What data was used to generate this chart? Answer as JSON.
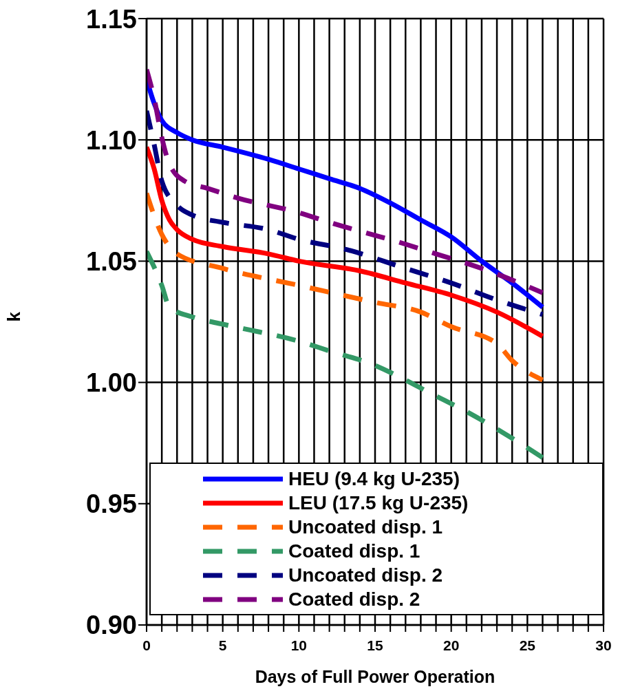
{
  "chart_data": {
    "type": "line",
    "xlabel": "Days of Full Power Operation",
    "ylabel": "k",
    "xlim": [
      0,
      30
    ],
    "xticks": [
      0,
      {
        "value": 1,
        "label": null
      },
      {
        "value": 2,
        "label": null
      },
      {
        "value": 3,
        "label": null
      },
      {
        "value": 4,
        "label": null
      },
      5,
      {
        "value": 6,
        "label": null
      },
      {
        "value": 7,
        "label": null
      },
      {
        "value": 8,
        "label": null
      },
      {
        "value": 9,
        "label": null
      },
      10,
      {
        "value": 11,
        "label": null
      },
      {
        "value": 12,
        "label": null
      },
      {
        "value": 13,
        "label": null
      },
      {
        "value": 14,
        "label": null
      },
      15,
      {
        "value": 16,
        "label": null
      },
      {
        "value": 17,
        "label": null
      },
      {
        "value": 18,
        "label": null
      },
      {
        "value": 19,
        "label": null
      },
      20,
      {
        "value": 21,
        "label": null
      },
      {
        "value": 22,
        "label": null
      },
      {
        "value": 23,
        "label": null
      },
      {
        "value": 24,
        "label": null
      },
      25,
      {
        "value": 26,
        "label": null
      },
      {
        "value": 27,
        "label": null
      },
      {
        "value": 28,
        "label": null
      },
      {
        "value": 29,
        "label": null
      },
      30
    ],
    "ylim": [
      0.9,
      1.15
    ],
    "yticks": [
      {
        "value": 0.9,
        "label": "0.90"
      },
      {
        "value": 0.95,
        "label": "0.95"
      },
      {
        "value": 1.0,
        "label": "1.00"
      },
      {
        "value": 1.05,
        "label": "1.05"
      },
      {
        "value": 1.1,
        "label": "1.10"
      },
      {
        "value": 1.15,
        "label": "1.15"
      }
    ],
    "grid": true,
    "legend": "bottom",
    "marker": "none",
    "series": [
      {
        "name": "HEU (9.4 kg U-235)",
        "color": "#0000ff",
        "line_style": "solid",
        "x": [
          0,
          0.5,
          1,
          2,
          3,
          5,
          8,
          10,
          12,
          14,
          16,
          18,
          20,
          22,
          24,
          26
        ],
        "values": [
          1.125,
          1.115,
          1.108,
          1.103,
          1.1,
          1.097,
          1.092,
          1.088,
          1.084,
          1.08,
          1.074,
          1.067,
          1.06,
          1.05,
          1.041,
          1.031
        ]
      },
      {
        "name": "LEU (17.5 kg U-235)",
        "color": "#ff0000",
        "line_style": "solid",
        "x": [
          0,
          0.5,
          1,
          1.5,
          2,
          3,
          5,
          8,
          10,
          14,
          17,
          20,
          23,
          26
        ],
        "values": [
          1.097,
          1.088,
          1.075,
          1.067,
          1.063,
          1.059,
          1.056,
          1.053,
          1.05,
          1.046,
          1.041,
          1.036,
          1.029,
          1.019
        ]
      },
      {
        "name": "Uncoated disp. 1",
        "color": "#ff6600",
        "line_style": "dashed",
        "x": [
          0,
          1,
          2,
          5,
          10,
          15,
          18,
          20,
          23,
          24,
          26
        ],
        "values": [
          1.078,
          1.061,
          1.053,
          1.047,
          1.04,
          1.033,
          1.029,
          1.023,
          1.016,
          1.009,
          1.001
        ]
      },
      {
        "name": "Coated disp. 1",
        "color": "#339966",
        "line_style": "dashed",
        "x": [
          0,
          1,
          1.5,
          3,
          5,
          6.5,
          10,
          12,
          15,
          17,
          18.5,
          21,
          24,
          26
        ],
        "values": [
          1.054,
          1.04,
          1.031,
          1.027,
          1.024,
          1.022,
          1.017,
          1.013,
          1.007,
          1.001,
          0.996,
          0.988,
          0.977,
          0.969
        ]
      },
      {
        "name": "Uncoated disp. 2",
        "color": "#000080",
        "line_style": "dashed",
        "x": [
          0,
          0.5,
          1,
          2,
          3,
          5,
          8,
          10,
          13,
          17,
          20,
          23,
          26
        ],
        "values": [
          1.112,
          1.098,
          1.083,
          1.073,
          1.069,
          1.066,
          1.063,
          1.059,
          1.055,
          1.047,
          1.041,
          1.034,
          1.028
        ]
      },
      {
        "name": "Coated disp. 2",
        "color": "#800080",
        "line_style": "dashed",
        "x": [
          0,
          0.5,
          1,
          1.5,
          2.5,
          4,
          6,
          10,
          12,
          17,
          19,
          22,
          26
        ],
        "values": [
          1.129,
          1.117,
          1.101,
          1.09,
          1.083,
          1.08,
          1.076,
          1.07,
          1.066,
          1.057,
          1.053,
          1.047,
          1.037
        ]
      }
    ]
  }
}
